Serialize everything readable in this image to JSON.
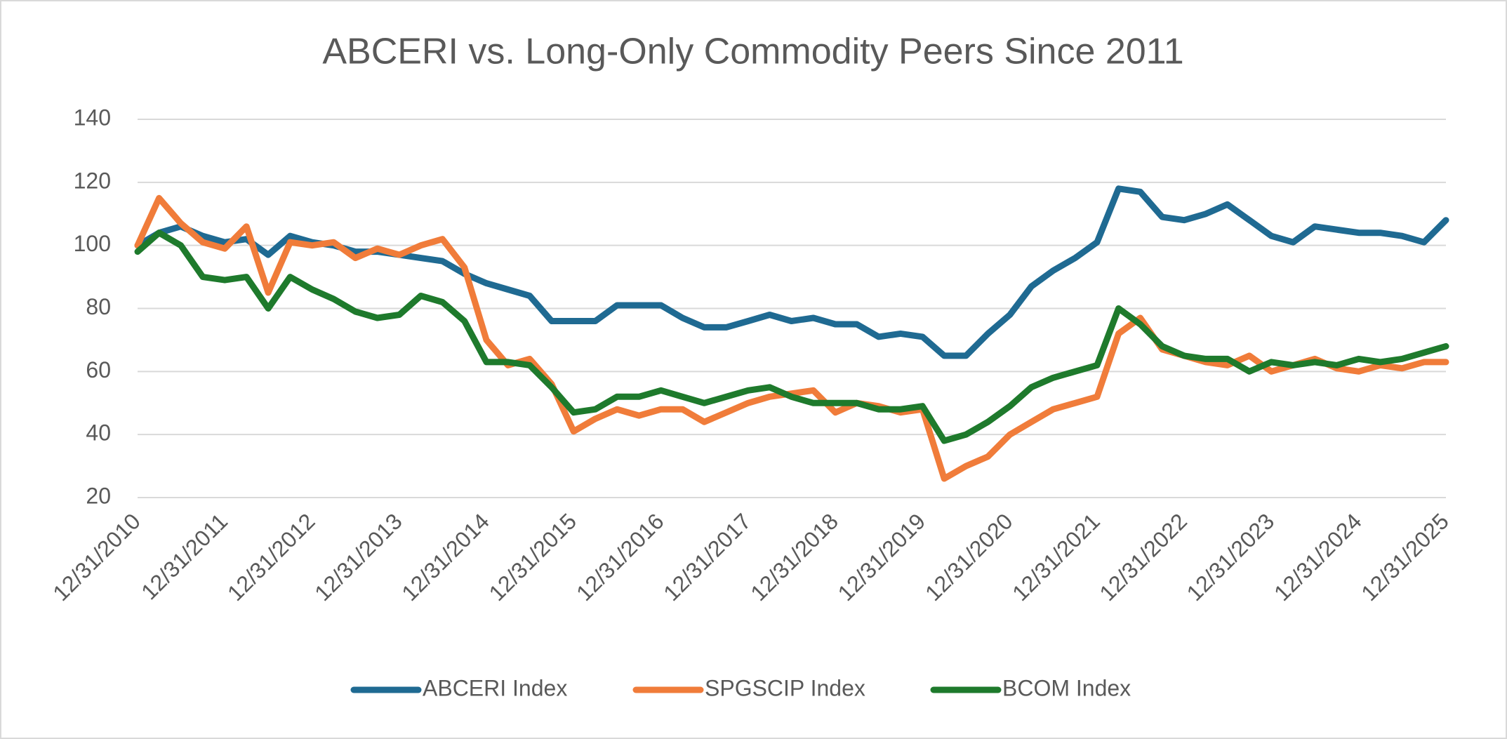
{
  "chart_data": {
    "type": "line",
    "title": "ABCERI vs. Long-Only Commodity Peers Since 2011",
    "x": [
      "12/31/2010",
      "3/31/2011",
      "6/30/2011",
      "9/30/2011",
      "12/31/2011",
      "3/31/2012",
      "6/30/2012",
      "9/30/2012",
      "12/31/2012",
      "3/31/2013",
      "6/30/2013",
      "9/30/2013",
      "12/31/2013",
      "3/31/2014",
      "6/30/2014",
      "9/30/2014",
      "12/31/2014",
      "3/31/2015",
      "6/30/2015",
      "9/30/2015",
      "12/31/2015",
      "3/31/2016",
      "6/30/2016",
      "9/30/2016",
      "12/31/2016",
      "3/31/2017",
      "6/30/2017",
      "9/30/2017",
      "12/31/2017",
      "3/31/2018",
      "6/30/2018",
      "9/30/2018",
      "12/31/2018",
      "3/31/2019",
      "6/30/2019",
      "9/30/2019",
      "12/31/2019",
      "3/31/2020",
      "6/30/2020",
      "9/30/2020",
      "12/31/2020",
      "3/31/2021",
      "6/30/2021",
      "9/30/2021",
      "12/31/2021",
      "3/31/2022",
      "6/30/2022",
      "9/30/2022",
      "12/31/2022",
      "3/31/2023",
      "6/30/2023",
      "9/30/2023",
      "12/31/2023",
      "3/31/2024",
      "6/30/2024",
      "9/30/2024",
      "12/31/2024",
      "3/31/2025",
      "6/30/2025",
      "9/30/2025",
      "12/31/2025"
    ],
    "series": [
      {
        "name": "ABCERI Index",
        "color": "#1f6a92",
        "values": [
          100,
          104,
          106,
          103,
          101,
          102,
          97,
          103,
          101,
          100,
          98,
          98,
          97,
          96,
          95,
          91,
          88,
          86,
          84,
          76,
          76,
          76,
          81,
          81,
          81,
          77,
          74,
          74,
          76,
          78,
          76,
          77,
          75,
          75,
          71,
          72,
          71,
          65,
          65,
          72,
          78,
          87,
          92,
          96,
          101,
          118,
          117,
          109,
          108,
          110,
          113,
          108,
          103,
          101,
          106,
          105,
          104,
          104,
          103,
          101,
          108
        ]
      },
      {
        "name": "SPGSCIP Index",
        "color": "#f07c3a",
        "values": [
          100,
          115,
          107,
          101,
          99,
          106,
          85,
          101,
          100,
          101,
          96,
          99,
          97,
          100,
          102,
          93,
          70,
          62,
          64,
          56,
          41,
          45,
          48,
          46,
          48,
          48,
          44,
          47,
          50,
          52,
          53,
          54,
          47,
          50,
          49,
          47,
          48,
          26,
          30,
          33,
          40,
          44,
          48,
          50,
          52,
          72,
          77,
          67,
          65,
          63,
          62,
          65,
          60,
          62,
          64,
          61,
          60,
          62,
          61,
          63,
          63
        ]
      },
      {
        "name": "BCOM Index",
        "color": "#1e7a2c",
        "values": [
          98,
          104,
          100,
          90,
          89,
          90,
          80,
          90,
          86,
          83,
          79,
          77,
          78,
          84,
          82,
          76,
          63,
          63,
          62,
          55,
          47,
          48,
          52,
          52,
          54,
          52,
          50,
          52,
          54,
          55,
          52,
          50,
          50,
          50,
          48,
          48,
          49,
          38,
          40,
          44,
          49,
          55,
          58,
          60,
          62,
          80,
          75,
          68,
          65,
          64,
          64,
          60,
          63,
          62,
          63,
          62,
          64,
          63,
          64,
          66,
          68
        ]
      }
    ],
    "xlim": [
      "12/31/2010",
      "12/31/2025"
    ],
    "xticks": [
      "12/31/2010",
      "12/31/2011",
      "12/31/2012",
      "12/31/2013",
      "12/31/2014",
      "12/31/2015",
      "12/31/2016",
      "12/31/2017",
      "12/31/2018",
      "12/31/2019",
      "12/31/2020",
      "12/31/2021",
      "12/31/2022",
      "12/31/2023",
      "12/31/2024",
      "12/31/2025"
    ],
    "ylim": [
      20,
      140
    ],
    "yticks": [
      20,
      40,
      60,
      80,
      100,
      120,
      140
    ],
    "grid": true,
    "legend": "bottom"
  }
}
